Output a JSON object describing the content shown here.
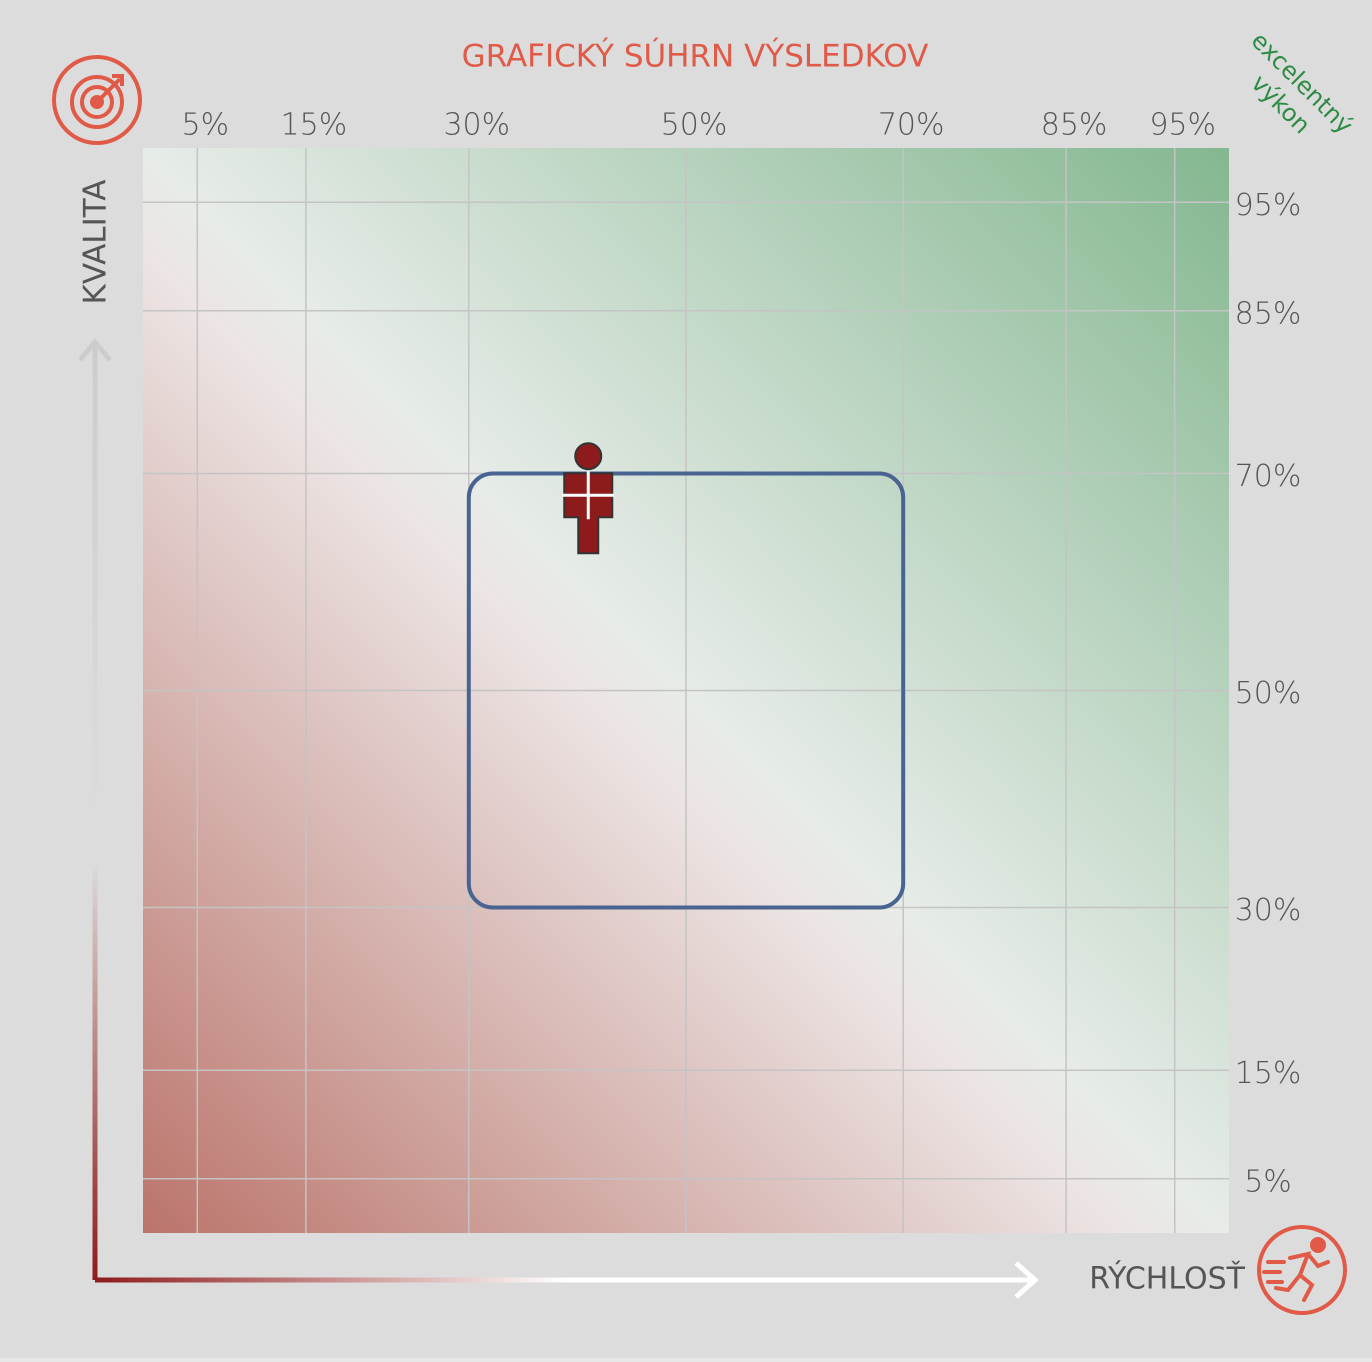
{
  "chart_data": {
    "type": "scatter",
    "title": "GRAFICKÝ SÚHRN VÝSLEDKOV",
    "x_label": "RÝCHLOSŤ",
    "y_label": "KVALITA",
    "annotation": [
      "excelentný",
      "výkon"
    ],
    "xlim": [
      0,
      100
    ],
    "ylim": [
      0,
      100
    ],
    "xticks": [
      {
        "value": 5,
        "label": "5%"
      },
      {
        "value": 15,
        "label": "15%"
      },
      {
        "value": 30,
        "label": "30%"
      },
      {
        "value": 50,
        "label": "50%"
      },
      {
        "value": 70,
        "label": "70%"
      },
      {
        "value": 85,
        "label": "85%"
      },
      {
        "value": 95,
        "label": "95%"
      }
    ],
    "yticks": [
      {
        "value": 5,
        "label": "5%"
      },
      {
        "value": 15,
        "label": "15%"
      },
      {
        "value": 30,
        "label": "30%"
      },
      {
        "value": 50,
        "label": "50%"
      },
      {
        "value": 70,
        "label": "70%"
      },
      {
        "value": 85,
        "label": "85%"
      },
      {
        "value": 95,
        "label": "95%"
      }
    ],
    "grid": true,
    "regions": [
      {
        "xrange": [
          30,
          70
        ],
        "yrange": [
          30,
          70
        ],
        "color": "#4a6491"
      }
    ],
    "series": [
      {
        "color": "#8e1b1b",
        "x": [
          41
        ],
        "values": [
          68
        ]
      }
    ]
  }
}
